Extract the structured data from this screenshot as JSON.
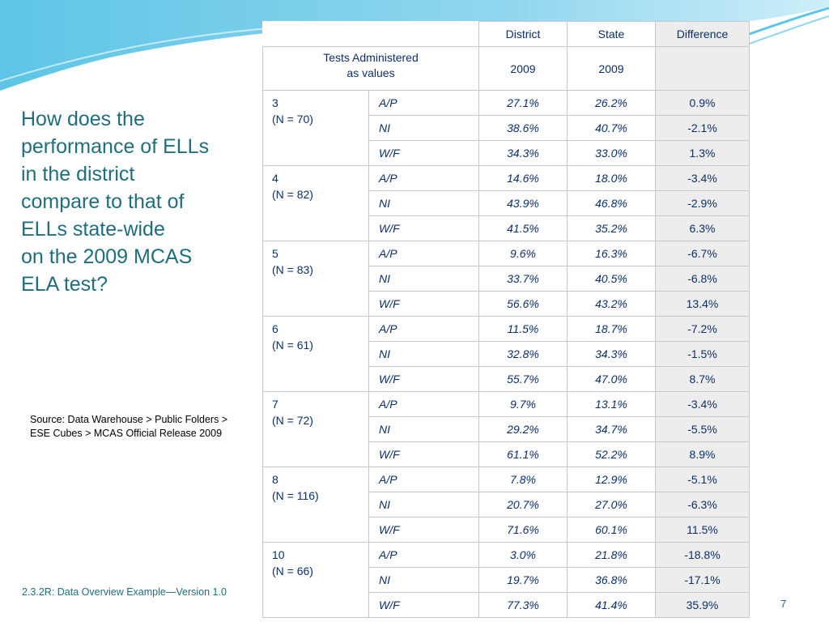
{
  "question": "How does the performance of ELLs in the district compare to that of ELLs state-wide on the 2009 MCAS ELA test?",
  "question_lines": [
    "How does the",
    "performance of ELLs",
    "in the district",
    "compare to that of",
    "ELLs state-wide",
    "on the 2009 MCAS",
    "ELA test?"
  ],
  "source_note": "Source: Data Warehouse > Public Folders > ESE Cubes > MCAS Official Release 2009",
  "footer": "2.3.2R: Data Overview Example—Version 1.0",
  "page_number": "7",
  "colors": {
    "title": "#1f6e7d",
    "table_text": "#0b2f6b",
    "difference_bg": "#ededed",
    "wave": "#5ec5e6"
  },
  "table": {
    "col_headers": [
      "District",
      "State",
      "Difference"
    ],
    "tests_label": [
      "Tests Administered",
      "as values"
    ],
    "years": [
      "2009",
      "2009"
    ],
    "grades": [
      {
        "grade": "3",
        "n": "(N = 70)",
        "rows": [
          {
            "level": "A/P",
            "district": "27.1%",
            "state": "26.2%",
            "difference": "0.9%"
          },
          {
            "level": "NI",
            "district": "38.6%",
            "state": "40.7%",
            "difference": "-2.1%"
          },
          {
            "level": "W/F",
            "district": "34.3%",
            "state": "33.0%",
            "difference": "1.3%"
          }
        ]
      },
      {
        "grade": "4",
        "n": "(N = 82)",
        "rows": [
          {
            "level": "A/P",
            "district": "14.6%",
            "state": "18.0%",
            "difference": "-3.4%"
          },
          {
            "level": "NI",
            "district": "43.9%",
            "state": "46.8%",
            "difference": "-2.9%"
          },
          {
            "level": "W/F",
            "district": "41.5%",
            "state": "35.2%",
            "difference": "6.3%"
          }
        ]
      },
      {
        "grade": "5",
        "n": "(N = 83)",
        "rows": [
          {
            "level": "A/P",
            "district": "9.6%",
            "state": "16.3%",
            "difference": "-6.7%"
          },
          {
            "level": "NI",
            "district": "33.7%",
            "state": "40.5%",
            "difference": "-6.8%"
          },
          {
            "level": "W/F",
            "district": "56.6%",
            "state": "43.2%",
            "difference": "13.4%"
          }
        ]
      },
      {
        "grade": "6",
        "n": "(N = 61)",
        "rows": [
          {
            "level": "A/P",
            "district": "11.5%",
            "state": "18.7%",
            "difference": "-7.2%"
          },
          {
            "level": "NI",
            "district": "32.8%",
            "state": "34.3%",
            "difference": "-1.5%"
          },
          {
            "level": "W/F",
            "district": "55.7%",
            "state": "47.0%",
            "difference": "8.7%"
          }
        ]
      },
      {
        "grade": "7",
        "n": "(N = 72)",
        "rows": [
          {
            "level": "A/P",
            "district": "9.7%",
            "state": "13.1%",
            "difference": "-3.4%"
          },
          {
            "level": "NI",
            "district": "29.2%",
            "state": "34.7%",
            "difference": "-5.5%"
          },
          {
            "level": "W/F",
            "district": "61.1%",
            "state": "52.2%",
            "difference": "8.9%"
          }
        ]
      },
      {
        "grade": "8",
        "n": "(N = 116)",
        "rows": [
          {
            "level": "A/P",
            "district": "7.8%",
            "state": "12.9%",
            "difference": "-5.1%"
          },
          {
            "level": "NI",
            "district": "20.7%",
            "state": "27.0%",
            "difference": "-6.3%"
          },
          {
            "level": "W/F",
            "district": "71.6%",
            "state": "60.1%",
            "difference": "11.5%"
          }
        ]
      },
      {
        "grade": "10",
        "n": "(N = 66)",
        "rows": [
          {
            "level": "A/P",
            "district": "3.0%",
            "state": "21.8%",
            "difference": "-18.8%"
          },
          {
            "level": "NI",
            "district": "19.7%",
            "state": "36.8%",
            "difference": "-17.1%"
          },
          {
            "level": "W/F",
            "district": "77.3%",
            "state": "41.4%",
            "difference": "35.9%"
          }
        ]
      }
    ]
  }
}
